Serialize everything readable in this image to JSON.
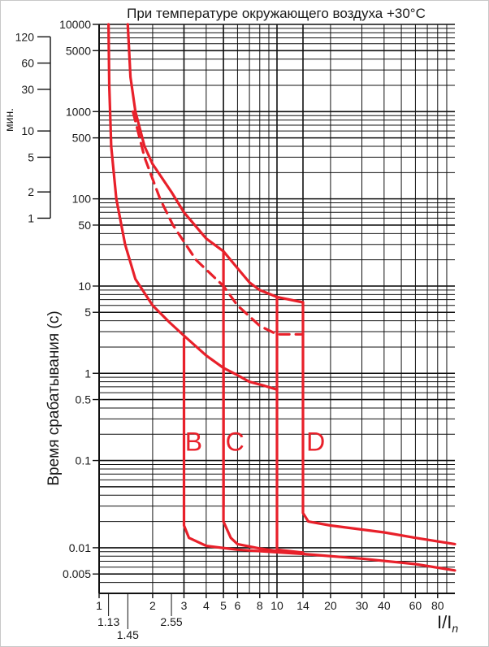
{
  "chart_data": {
    "type": "line",
    "title": "При температуре окружающего воздуха +30°С",
    "ylabel": "Время срабатывания (с)",
    "xlabel": "I/I",
    "xlabel_sub": "n",
    "x_scale": "log",
    "y_scale": "log",
    "xlim": [
      1,
      100
    ],
    "ylim": [
      0.003,
      10000
    ],
    "grid": true,
    "x_ticks": [
      {
        "value": 1,
        "label": "1"
      },
      {
        "value": 2,
        "label": "2"
      },
      {
        "value": 3,
        "label": "3"
      },
      {
        "value": 4,
        "label": "4"
      },
      {
        "value": 5,
        "label": "5"
      },
      {
        "value": 6,
        "label": "6"
      },
      {
        "value": 8,
        "label": "8"
      },
      {
        "value": 10,
        "label": "10"
      },
      {
        "value": 14,
        "label": "14"
      },
      {
        "value": 20,
        "label": "20"
      },
      {
        "value": 30,
        "label": "30"
      },
      {
        "value": 40,
        "label": "40"
      },
      {
        "value": 60,
        "label": "60"
      },
      {
        "value": 80,
        "label": "80"
      }
    ],
    "x_ticks_extra": [
      {
        "value": 1.13,
        "label": "1.13",
        "row": 1
      },
      {
        "value": 1.45,
        "label": "1.45",
        "row": 2
      },
      {
        "value": 2.55,
        "label": "2.55",
        "row": 1
      }
    ],
    "y_ticks": [
      {
        "value": 10000,
        "label": "10000"
      },
      {
        "value": 5000,
        "label": "5000"
      },
      {
        "value": 1000,
        "label": "1000"
      },
      {
        "value": 500,
        "label": "500"
      },
      {
        "value": 100,
        "label": "100"
      },
      {
        "value": 50,
        "label": "50"
      },
      {
        "value": 10,
        "label": "10"
      },
      {
        "value": 5,
        "label": "5"
      },
      {
        "value": 1,
        "label": "1"
      },
      {
        "value": 0.5,
        "label": "0.5"
      },
      {
        "value": 0.1,
        "label": "0.1"
      },
      {
        "value": 0.01,
        "label": "0.01"
      },
      {
        "value": 0.005,
        "label": "0.005"
      }
    ],
    "minutes_axis": {
      "label": "мин.",
      "ticks": [
        {
          "value": 120,
          "label": "120"
        },
        {
          "value": 60,
          "label": "60"
        },
        {
          "value": 30,
          "label": "30"
        },
        {
          "value": 10,
          "label": "10"
        },
        {
          "value": 5,
          "label": "5"
        },
        {
          "value": 2,
          "label": "2"
        },
        {
          "value": 1,
          "label": "1"
        }
      ]
    },
    "curve_color": "#e8202a",
    "series": [
      {
        "id": "low",
        "style": "solid",
        "points": [
          [
            1.13,
            10000
          ],
          [
            1.14,
            2000
          ],
          [
            1.17,
            400
          ],
          [
            1.25,
            100
          ],
          [
            1.4,
            30
          ],
          [
            1.6,
            12
          ],
          [
            2.0,
            6
          ],
          [
            2.5,
            3.8
          ],
          [
            3.0,
            2.7
          ],
          [
            4.0,
            1.6
          ],
          [
            5.0,
            1.15
          ],
          [
            6.0,
            0.95
          ],
          [
            7.0,
            0.8
          ],
          [
            8.5,
            0.72
          ],
          [
            10,
            0.65
          ]
        ]
      },
      {
        "id": "high",
        "style": "solid",
        "points": [
          [
            1.45,
            10000
          ],
          [
            1.5,
            2500
          ],
          [
            1.6,
            1000
          ],
          [
            1.8,
            400
          ],
          [
            2.0,
            250
          ],
          [
            2.55,
            120
          ],
          [
            3.0,
            70
          ],
          [
            4.0,
            35
          ],
          [
            5.0,
            25
          ],
          [
            6.0,
            16
          ],
          [
            7.0,
            11
          ],
          [
            8.0,
            9
          ],
          [
            10,
            7.5
          ],
          [
            14,
            6.5
          ]
        ]
      },
      {
        "id": "dashed",
        "style": "dashed",
        "points": [
          [
            1.55,
            1000
          ],
          [
            1.8,
            300
          ],
          [
            2.2,
            100
          ],
          [
            2.6,
            50
          ],
          [
            3.5,
            20
          ],
          [
            5.0,
            10
          ],
          [
            6.0,
            6
          ],
          [
            7.0,
            4.5
          ],
          [
            8.0,
            3.5
          ],
          [
            10,
            2.8
          ],
          [
            14,
            2.8
          ]
        ]
      },
      {
        "id": "tail-B",
        "style": "solid",
        "points": [
          [
            3,
            2.5
          ],
          [
            3,
            0.018
          ],
          [
            3.2,
            0.013
          ],
          [
            4.0,
            0.0105
          ],
          [
            6.0,
            0.0095
          ],
          [
            14,
            0.0085
          ],
          [
            30,
            0.0075
          ],
          [
            60,
            0.0065
          ],
          [
            100,
            0.0055
          ]
        ]
      },
      {
        "id": "tail-C",
        "style": "solid",
        "points": [
          [
            5,
            25
          ],
          [
            5,
            0.02
          ],
          [
            5.5,
            0.013
          ],
          [
            6.0,
            0.011
          ],
          [
            8.0,
            0.0098
          ],
          [
            10,
            0.0092
          ],
          [
            12,
            0.0088
          ]
        ]
      },
      {
        "id": "tail-C-left",
        "style": "solid",
        "points": [
          [
            5,
            1.15
          ],
          [
            5,
            0.03
          ]
        ]
      },
      {
        "id": "tail-D",
        "style": "solid",
        "points": [
          [
            10,
            7.5
          ],
          [
            10,
            0.0095
          ],
          [
            14,
            0.0088
          ]
        ]
      },
      {
        "id": "tail-D-right",
        "style": "solid",
        "points": [
          [
            14,
            6.5
          ],
          [
            14,
            0.025
          ],
          [
            15,
            0.02
          ],
          [
            20,
            0.018
          ],
          [
            40,
            0.015
          ],
          [
            60,
            0.013
          ],
          [
            100,
            0.011
          ]
        ]
      }
    ],
    "annotations": [
      {
        "text": "B",
        "x": 3.4,
        "y": 0.13
      },
      {
        "text": "C",
        "x": 5.8,
        "y": 0.13
      },
      {
        "text": "D",
        "x": 16.5,
        "y": 0.13
      }
    ]
  }
}
